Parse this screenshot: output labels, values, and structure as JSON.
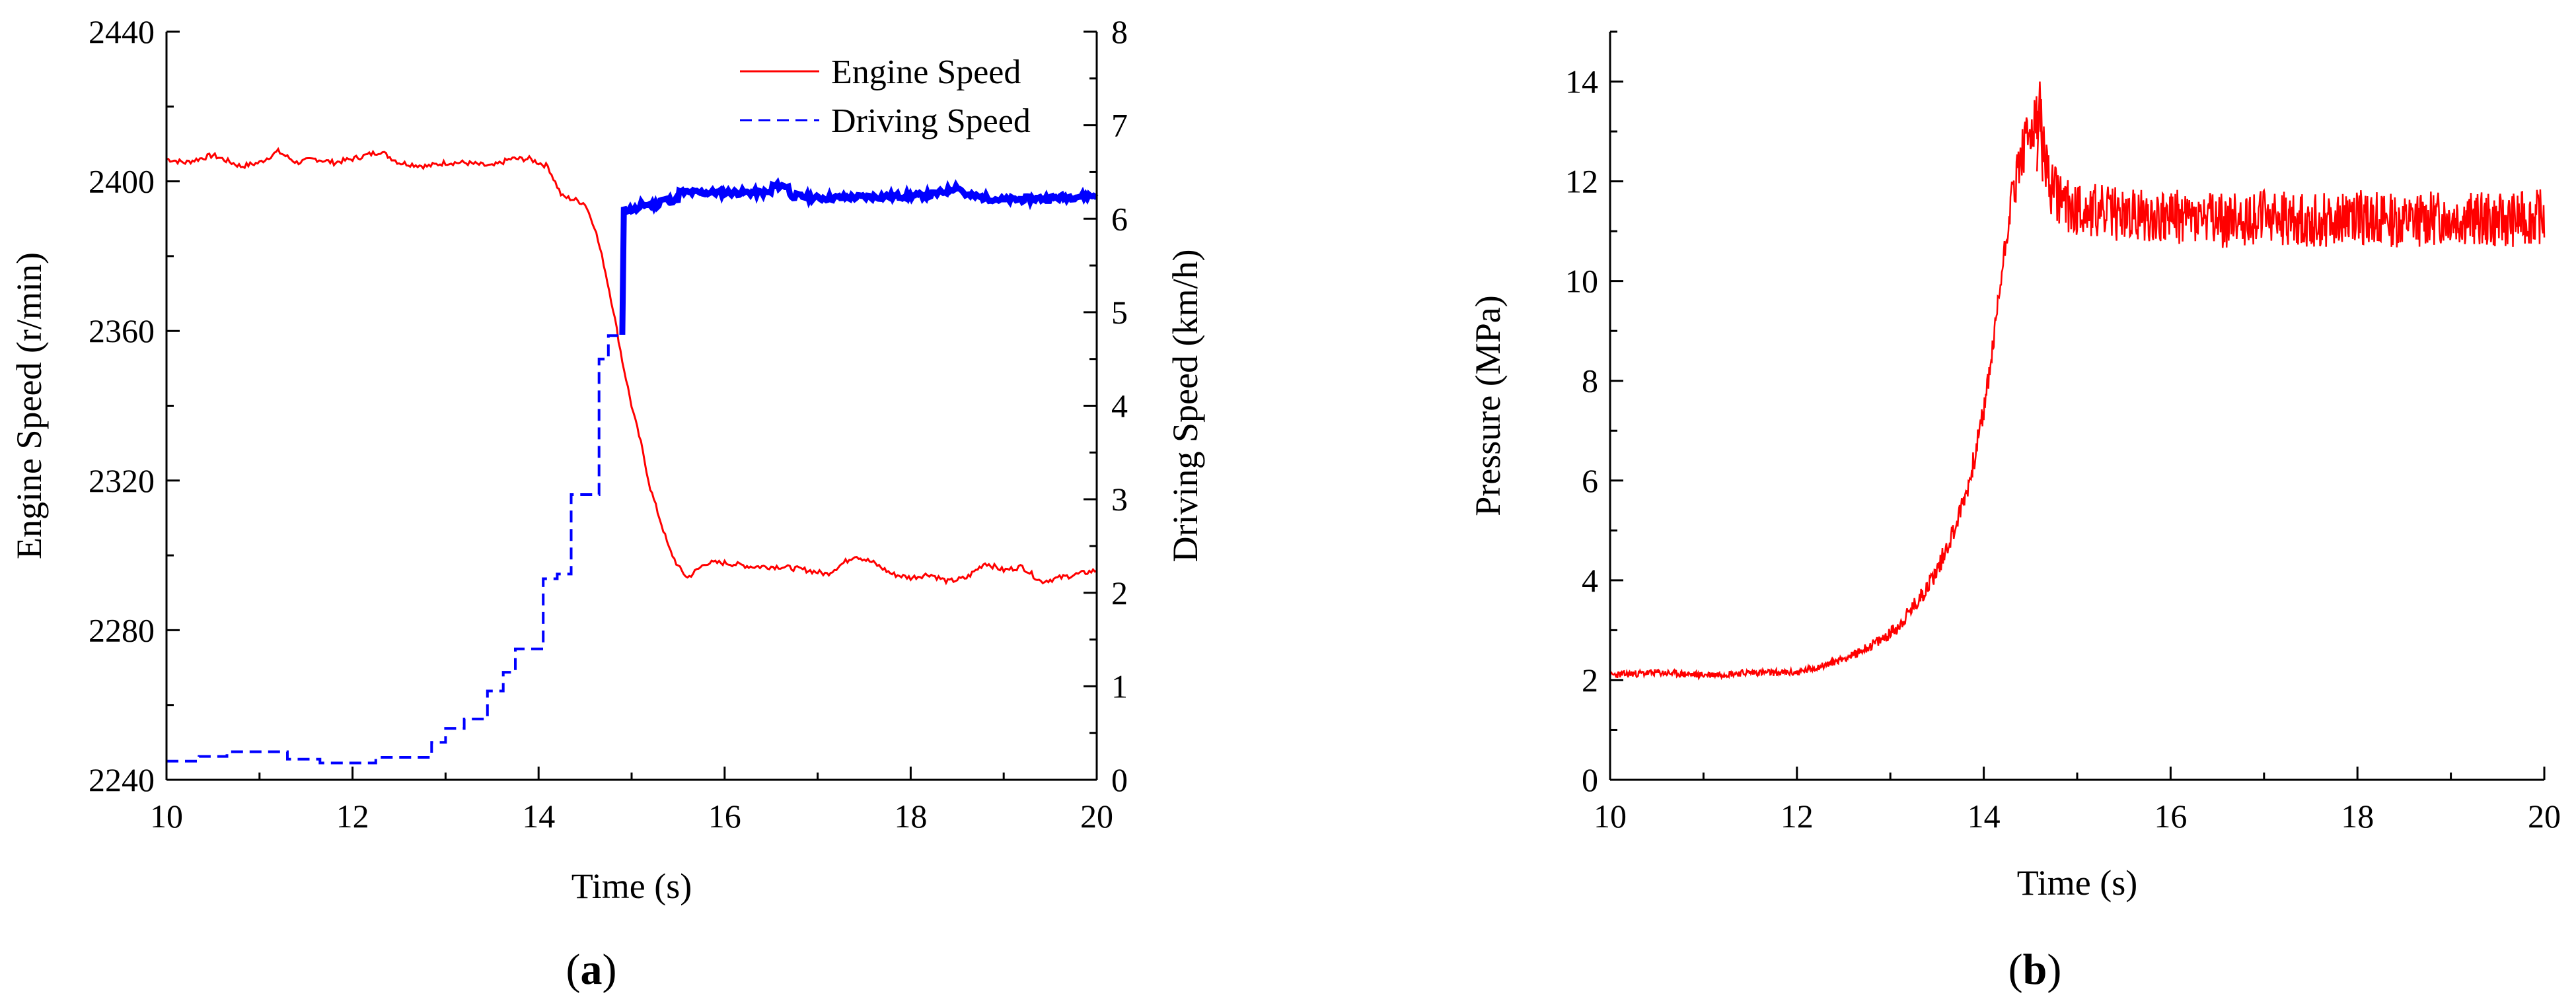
{
  "chart_data": [
    {
      "panel": "a",
      "type": "line",
      "caption": {
        "open": "(",
        "letter": "a",
        "close": ")"
      },
      "xlabel": "Time (s)",
      "ylabel": "Engine Speed (r/min)",
      "y2label": "Driving Speed (km/h)",
      "xlim": [
        10,
        20
      ],
      "ylim": [
        2240,
        2440
      ],
      "y2lim": [
        0,
        8
      ],
      "xticks": [
        "10",
        "12",
        "14",
        "16",
        "18",
        "20"
      ],
      "yticks": [
        "2240",
        "2280",
        "2320",
        "2360",
        "2400",
        "2440"
      ],
      "y2ticks": [
        "0",
        "1",
        "2",
        "3",
        "4",
        "5",
        "6",
        "7",
        "8"
      ],
      "legend_position": "top-right",
      "grid": false,
      "series": [
        {
          "name": "Engine Speed",
          "axis": "left",
          "color": "#ff0000",
          "style": "solid",
          "x": [
            10.0,
            10.2,
            10.5,
            10.8,
            11.0,
            11.2,
            11.4,
            11.6,
            11.8,
            12.0,
            12.3,
            12.5,
            12.8,
            13.0,
            13.2,
            13.5,
            13.7,
            13.9,
            14.1,
            14.25,
            14.4,
            14.5,
            14.6,
            14.7,
            14.8,
            14.9,
            15.0,
            15.1,
            15.2,
            15.3,
            15.4,
            15.5,
            15.6,
            15.8,
            16.0,
            16.3,
            16.6,
            16.9,
            17.1,
            17.4,
            17.6,
            17.8,
            18.0,
            18.2,
            18.4,
            18.6,
            18.8,
            19.0,
            19.2,
            19.4,
            19.6,
            19.8,
            20.0
          ],
          "values": [
            2406,
            2405,
            2407,
            2404,
            2405,
            2408,
            2405,
            2406,
            2405,
            2406,
            2408,
            2405,
            2404,
            2405,
            2405,
            2404,
            2406,
            2406,
            2404,
            2396,
            2395,
            2394,
            2388,
            2378,
            2366,
            2352,
            2340,
            2330,
            2318,
            2310,
            2302,
            2297,
            2294,
            2298,
            2298,
            2297,
            2297,
            2296,
            2295,
            2300,
            2298,
            2295,
            2294,
            2295,
            2293,
            2294,
            2298,
            2296,
            2297,
            2293,
            2294,
            2295,
            2296
          ]
        },
        {
          "name": "Driving Speed",
          "axis": "right",
          "color": "#0000ff",
          "style": "dashed",
          "x": [
            10.0,
            10.35,
            10.35,
            10.65,
            10.65,
            11.3,
            11.3,
            11.65,
            11.65,
            12.25,
            12.25,
            12.85,
            12.85,
            13.0,
            13.0,
            13.2,
            13.2,
            13.45,
            13.45,
            13.62,
            13.62,
            13.75,
            13.75,
            14.05,
            14.05,
            14.2,
            14.2,
            14.35,
            14.35,
            14.65,
            14.65,
            14.75,
            14.75,
            14.9,
            14.9,
            15.1,
            15.1,
            15.3,
            15.3,
            15.5,
            15.5,
            16.5,
            16.5,
            16.7,
            16.7,
            17.0,
            18.2,
            18.4,
            18.5,
            18.6,
            19.0,
            19.5,
            20.0
          ],
          "values": [
            0.2,
            0.2,
            0.25,
            0.25,
            0.3,
            0.3,
            0.22,
            0.22,
            0.18,
            0.18,
            0.24,
            0.24,
            0.4,
            0.4,
            0.55,
            0.55,
            0.65,
            0.65,
            0.95,
            0.95,
            1.15,
            1.15,
            1.4,
            1.4,
            2.15,
            2.15,
            2.2,
            2.2,
            3.05,
            3.05,
            4.5,
            4.5,
            4.75,
            4.75,
            6.1,
            6.1,
            6.15,
            6.15,
            6.2,
            6.2,
            6.28,
            6.28,
            6.35,
            6.35,
            6.25,
            6.22,
            6.25,
            6.3,
            6.35,
            6.25,
            6.2,
            6.22,
            6.25
          ]
        }
      ]
    },
    {
      "panel": "b",
      "type": "line",
      "caption": {
        "open": "(",
        "letter": "b",
        "close": ")"
      },
      "xlabel": "Time (s)",
      "ylabel": "Pressure (MPa)",
      "xlim": [
        10,
        20
      ],
      "ylim": [
        0,
        15
      ],
      "xticks": [
        "10",
        "12",
        "14",
        "16",
        "18",
        "20"
      ],
      "yticks": [
        "0",
        "2",
        "4",
        "6",
        "8",
        "10",
        "12",
        "14"
      ],
      "grid": false,
      "series": [
        {
          "name": "Pressure",
          "color": "#ff0000",
          "style": "solid",
          "x": [
            10.0,
            10.5,
            11.0,
            11.5,
            12.0,
            12.3,
            12.6,
            12.9,
            13.1,
            13.3,
            13.5,
            13.7,
            13.85,
            14.0,
            14.1,
            14.2,
            14.3,
            14.4,
            14.5,
            14.6,
            14.7,
            14.9,
            15.2,
            15.6,
            16.0,
            16.5,
            17.0,
            17.5,
            18.0,
            18.5,
            19.0,
            19.5,
            20.0
          ],
          "values": [
            2.1,
            2.15,
            2.1,
            2.15,
            2.15,
            2.3,
            2.5,
            2.8,
            3.1,
            3.6,
            4.2,
            5.1,
            6.0,
            7.4,
            8.7,
            10.3,
            11.7,
            12.5,
            13.0,
            13.3,
            11.9,
            11.5,
            11.4,
            11.3,
            11.3,
            11.2,
            11.3,
            11.2,
            11.3,
            11.2,
            11.3,
            11.2,
            11.3
          ],
          "noise_amplitude": 0.55,
          "baseline_noise": 0.07
        }
      ]
    }
  ]
}
